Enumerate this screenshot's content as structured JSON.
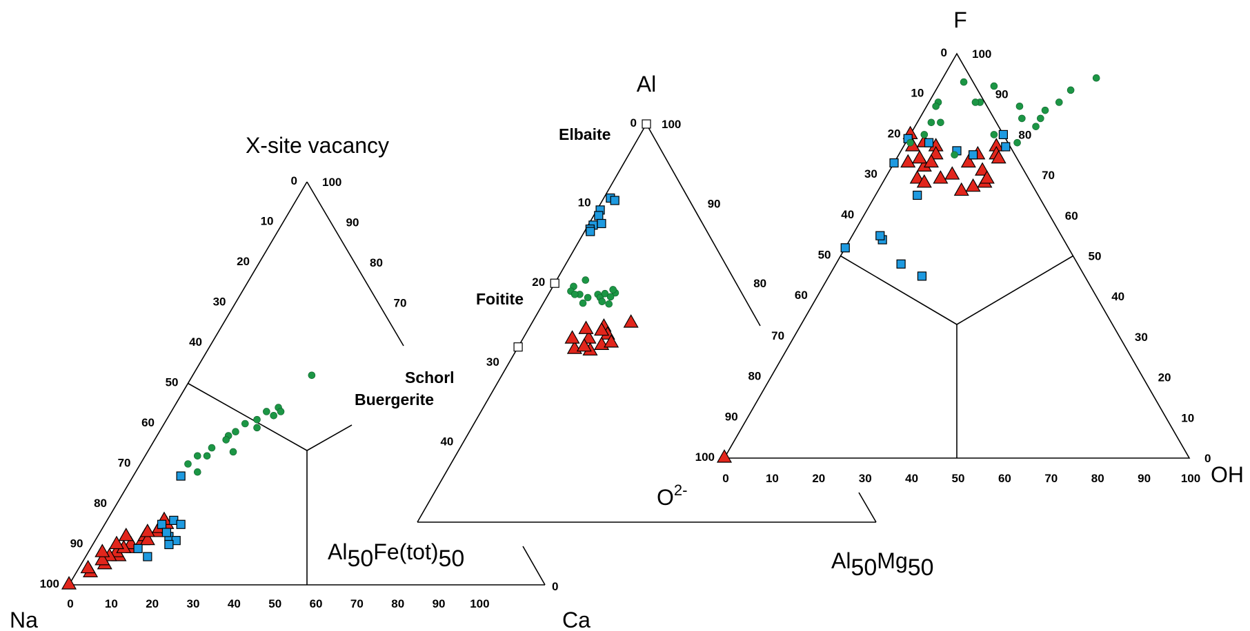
{
  "chart_data": [
    {
      "type": "scatter",
      "diagram": "ternary",
      "vertex_labels": {
        "top": "X-site vacancy",
        "left": "Na",
        "right": "Ca",
        "sub_region": {
          "base": "Al",
          "sub1": "50",
          "mid": "Fe(tot)",
          "sub2": "50"
        }
      },
      "left_axis_ticks": [
        "0",
        "10",
        "20",
        "30",
        "40",
        "50",
        "60",
        "70",
        "80",
        "90",
        "100"
      ],
      "right_axis_ticks": [
        "100",
        "90",
        "80",
        "70"
      ],
      "bottom_axis_ticks": [
        "0",
        "10",
        "20",
        "30",
        "40",
        "50",
        "60",
        "70",
        "80",
        "90",
        "100"
      ],
      "right_corner_tick": "0",
      "series": [
        {
          "marker": "triangle",
          "color": "#e2261c",
          "points": [
            [
              100,
              0
            ],
            [
              97,
              3
            ],
            [
              95,
              5
            ],
            [
              93,
              7
            ],
            [
              91,
              9
            ],
            [
              89,
              10
            ],
            [
              88,
              10
            ],
            [
              92,
              6
            ],
            [
              90,
              8
            ],
            [
              87,
              12
            ],
            [
              86,
              12
            ],
            [
              85,
              13
            ],
            [
              93,
              5
            ],
            [
              94,
              4
            ],
            [
              91,
              7
            ],
            [
              89,
              11
            ],
            [
              87,
              10
            ],
            [
              84,
              12
            ],
            [
              90,
              5
            ],
            [
              88,
              6
            ],
            [
              92,
              3
            ],
            [
              96,
              2
            ]
          ]
        },
        {
          "marker": "square",
          "color": "#1e9ae0",
          "points": [
            [
              73,
              10
            ],
            [
              85,
              12
            ],
            [
              88,
              15
            ],
            [
              84,
              14
            ],
            [
              85,
              16
            ],
            [
              89,
              17
            ],
            [
              90,
              16
            ],
            [
              93,
              13
            ],
            [
              91,
              10
            ],
            [
              87,
              14
            ]
          ]
        },
        {
          "marker": "circle",
          "color": "#1c9645",
          "points": [
            [
              48,
              25
            ],
            [
              56,
              22
            ],
            [
              57,
              23
            ],
            [
              58,
              22
            ],
            [
              57,
              20
            ],
            [
              59,
              19
            ],
            [
              60,
              17
            ],
            [
              62,
              16
            ],
            [
              63,
              15
            ],
            [
              61,
              20
            ],
            [
              64,
              15
            ],
            [
              66,
              13
            ],
            [
              68,
              13
            ],
            [
              68,
              11
            ],
            [
              70,
              10
            ],
            [
              67,
              18
            ],
            [
              72,
              13
            ]
          ]
        }
      ]
    },
    {
      "type": "scatter",
      "diagram": "ternary",
      "vertex_labels": {
        "top": "Al",
        "right_bottom": {
          "base": "Al",
          "sub1": "50",
          "mid": "Mg",
          "sub2": "50"
        }
      },
      "left_axis_ticks": [
        "0",
        "10",
        "20",
        "30",
        "40"
      ],
      "right_axis_ticks": [
        "100",
        "90",
        "80"
      ],
      "mineral_labels": [
        "Elbaite",
        "Foitite",
        "Schorl",
        "Buergerite"
      ],
      "end_members": [
        [
          0,
          0
        ],
        [
          20,
          0
        ],
        [
          28,
          0
        ]
      ],
      "series": [
        {
          "marker": "triangle",
          "color": "#e2261c",
          "points": [
            [
              25,
              12
            ],
            [
              25.5,
              9
            ],
            [
              26.5,
              10
            ],
            [
              27,
              8
            ],
            [
              27.8,
              10
            ],
            [
              28.3,
              7
            ],
            [
              28.5,
              9
            ],
            [
              27.5,
              11
            ],
            [
              26,
              9
            ],
            [
              27,
              6
            ],
            [
              28,
              8
            ],
            [
              25.8,
              7
            ]
          ]
        },
        {
          "marker": "square",
          "color": "#1e9ae0",
          "points": [
            [
              9.3,
              0.8
            ],
            [
              9.6,
              1.5
            ],
            [
              10.8,
              0.4
            ],
            [
              11.5,
              0.6
            ],
            [
              12.7,
              0.6
            ],
            [
              13.2,
              0.5
            ],
            [
              13.5,
              0.7
            ],
            [
              12.5,
              1.5
            ]
          ]
        },
        {
          "marker": "circle",
          "color": "#1c9645",
          "points": [
            [
              19.6,
              3.5
            ],
            [
              20.4,
              2.5
            ],
            [
              21,
              2.5
            ],
            [
              21.4,
              3.8
            ],
            [
              21.8,
              5
            ],
            [
              21.4,
              6
            ],
            [
              21.8,
              6.5
            ],
            [
              22.3,
              7
            ],
            [
              22.6,
              8
            ],
            [
              21.2,
              8
            ],
            [
              20.8,
              7.5
            ],
            [
              21.3,
              6.8
            ],
            [
              21.7,
              7.7
            ],
            [
              22.5,
              4.8
            ],
            [
              21.4,
              3.2
            ]
          ]
        }
      ]
    },
    {
      "type": "scatter",
      "diagram": "ternary",
      "vertex_labels": {
        "top": "F",
        "left": "O2-",
        "right": "OH"
      },
      "left_axis_ticks": [
        "0",
        "10",
        "20",
        "30",
        "40",
        "50",
        "60",
        "70",
        "80",
        "90",
        "100"
      ],
      "right_axis_ticks": [
        "100",
        "90",
        "80",
        "70",
        "60",
        "50",
        "40",
        "30",
        "20",
        "10",
        "0"
      ],
      "bottom_axis_ticks": [
        "0",
        "10",
        "20",
        "30",
        "40",
        "50",
        "60",
        "70",
        "80",
        "90",
        "100"
      ],
      "series": [
        {
          "marker": "triangle",
          "color": "#e2261c",
          "points": [
            [
              100,
              0
            ],
            [
              20,
              0
            ],
            [
              23,
              2
            ],
            [
              27,
              3
            ],
            [
              22,
              4
            ],
            [
              23,
              7
            ],
            [
              25,
              8
            ],
            [
              28,
              7
            ],
            [
              26,
              5
            ],
            [
              27,
              8
            ],
            [
              31,
              7
            ],
            [
              32,
              9
            ],
            [
              31,
              12
            ],
            [
              30,
              14
            ],
            [
              27,
              16
            ],
            [
              25,
              17
            ],
            [
              23,
              20
            ],
            [
              25,
              21
            ],
            [
              26,
              22
            ],
            [
              29,
              20
            ],
            [
              32,
              22
            ],
            [
              34,
              18
            ],
            [
              31,
              22
            ],
            [
              33,
              20
            ]
          ]
        },
        {
          "marker": "square",
          "color": "#1e9ae0",
          "points": [
            [
              21,
              0
            ],
            [
              24,
              12
            ],
            [
              22,
              5
            ],
            [
              27,
              0
            ],
            [
              20,
              20
            ],
            [
              23,
              22
            ],
            [
              46,
              7
            ],
            [
              48,
              0
            ],
            [
              52,
              14
            ],
            [
              55,
              20
            ],
            [
              45,
              6
            ],
            [
              35,
              9
            ],
            [
              25,
              16
            ]
          ]
        },
        {
          "marker": "circle",
          "color": "#1c9645",
          "points": [
            [
              22,
              1
            ],
            [
              20,
              3
            ],
            [
              17,
              3
            ],
            [
              17,
              5
            ],
            [
              12,
              2
            ],
            [
              13,
              2
            ],
            [
              7,
              5
            ],
            [
              12,
              11
            ],
            [
              13,
              20
            ],
            [
              16,
              22
            ],
            [
              20,
              18
            ],
            [
              16,
              26
            ],
            [
              14,
              26
            ],
            [
              9,
              29
            ],
            [
              6,
              33
            ],
            [
              12,
              28
            ],
            [
              18,
              26
            ],
            [
              22,
              24
            ],
            [
              25,
              12
            ],
            [
              12,
              10
            ],
            [
              8,
              12
            ]
          ]
        }
      ]
    }
  ]
}
